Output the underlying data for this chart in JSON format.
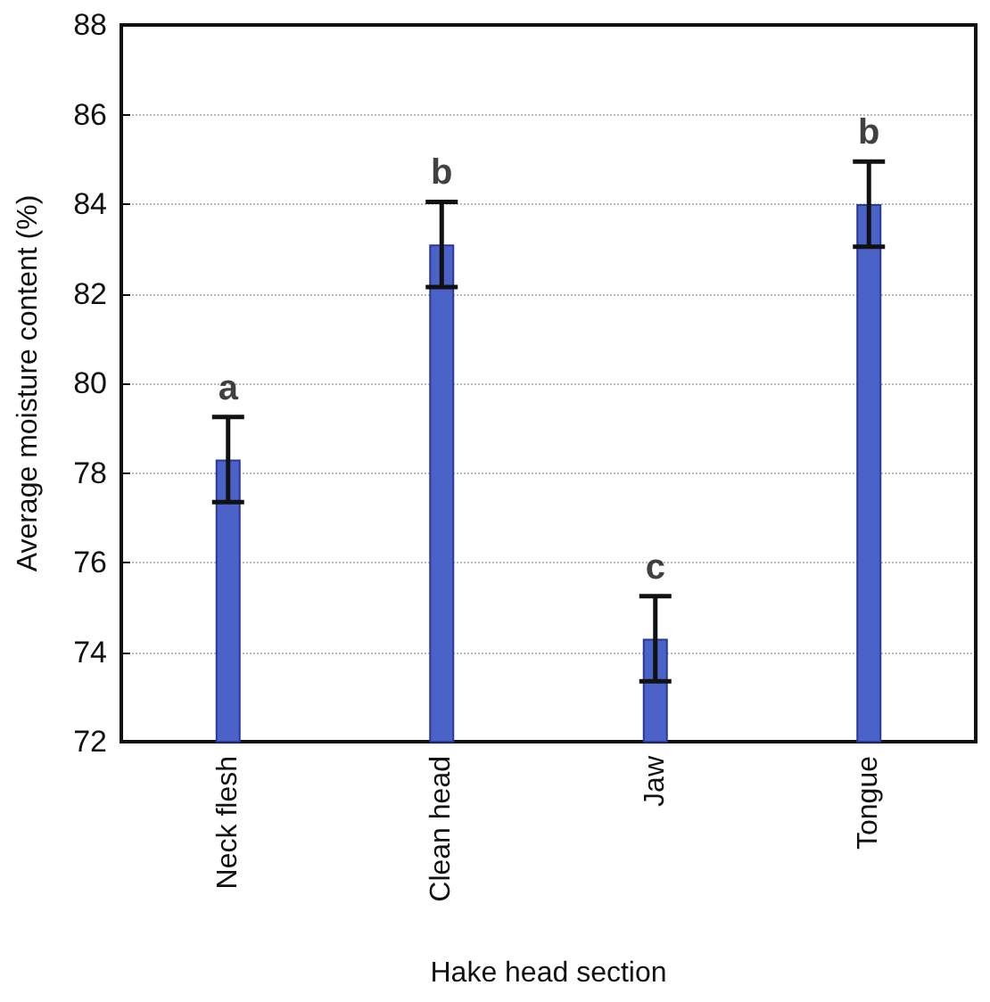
{
  "chart_data": {
    "type": "bar",
    "xlabel": "Hake head section",
    "ylabel": "Average moisture content (%)",
    "categories": [
      "Neck flesh",
      "Clean head",
      "Jaw",
      "Tongue"
    ],
    "values": [
      78.3,
      83.1,
      74.3,
      84.0
    ],
    "errors": [
      0.95,
      0.95,
      0.95,
      0.95
    ],
    "color": "#4b62c9",
    "ylim": [
      72,
      88
    ],
    "yticks": [
      72,
      74,
      76,
      78,
      80,
      82,
      84,
      86,
      88
    ],
    "grid": "y",
    "annotations": [
      {
        "text": "a",
        "x": "Neck flesh",
        "y": 79.25
      },
      {
        "text": "b",
        "x": "Clean head",
        "y": 84.05
      },
      {
        "text": "c",
        "x": "Jaw",
        "y": 75.25
      },
      {
        "text": "b",
        "x": "Tongue",
        "y": 84.95
      }
    ]
  }
}
